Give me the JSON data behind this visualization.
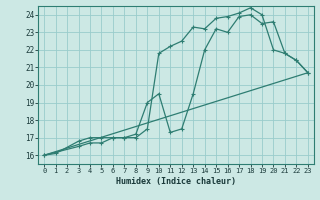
{
  "xlabel": "Humidex (Indice chaleur)",
  "background_color": "#cce8e4",
  "grid_color": "#99cccc",
  "line_color": "#2e7d72",
  "xlim": [
    -0.5,
    23.5
  ],
  "ylim": [
    15.5,
    24.5
  ],
  "xticks": [
    0,
    1,
    2,
    3,
    4,
    5,
    6,
    7,
    8,
    9,
    10,
    11,
    12,
    13,
    14,
    15,
    16,
    17,
    18,
    19,
    20,
    21,
    22,
    23
  ],
  "yticks": [
    16,
    17,
    18,
    19,
    20,
    21,
    22,
    23,
    24
  ],
  "line1_x": [
    0,
    1,
    3,
    4,
    5,
    6,
    7,
    8,
    9,
    10,
    11,
    12,
    13,
    14,
    15,
    16,
    17,
    18,
    19,
    20,
    21,
    22,
    23
  ],
  "line1_y": [
    16.0,
    16.1,
    16.8,
    17.0,
    17.0,
    17.0,
    17.0,
    17.0,
    17.5,
    21.8,
    22.2,
    22.5,
    23.3,
    23.2,
    23.8,
    23.9,
    24.1,
    24.4,
    24.0,
    22.0,
    21.8,
    21.4,
    20.7
  ],
  "line2_x": [
    0,
    3,
    4,
    5,
    6,
    7,
    8,
    9,
    10,
    11,
    12,
    13,
    14,
    15,
    16,
    17,
    18,
    19,
    20,
    21,
    22,
    23
  ],
  "line2_y": [
    16.0,
    16.5,
    16.7,
    16.7,
    17.0,
    17.0,
    17.2,
    19.0,
    19.5,
    17.3,
    17.5,
    19.5,
    22.0,
    23.2,
    23.0,
    23.9,
    24.0,
    23.5,
    23.6,
    21.8,
    21.4,
    20.7
  ],
  "line3_x": [
    0,
    23
  ],
  "line3_y": [
    16.0,
    20.7
  ]
}
